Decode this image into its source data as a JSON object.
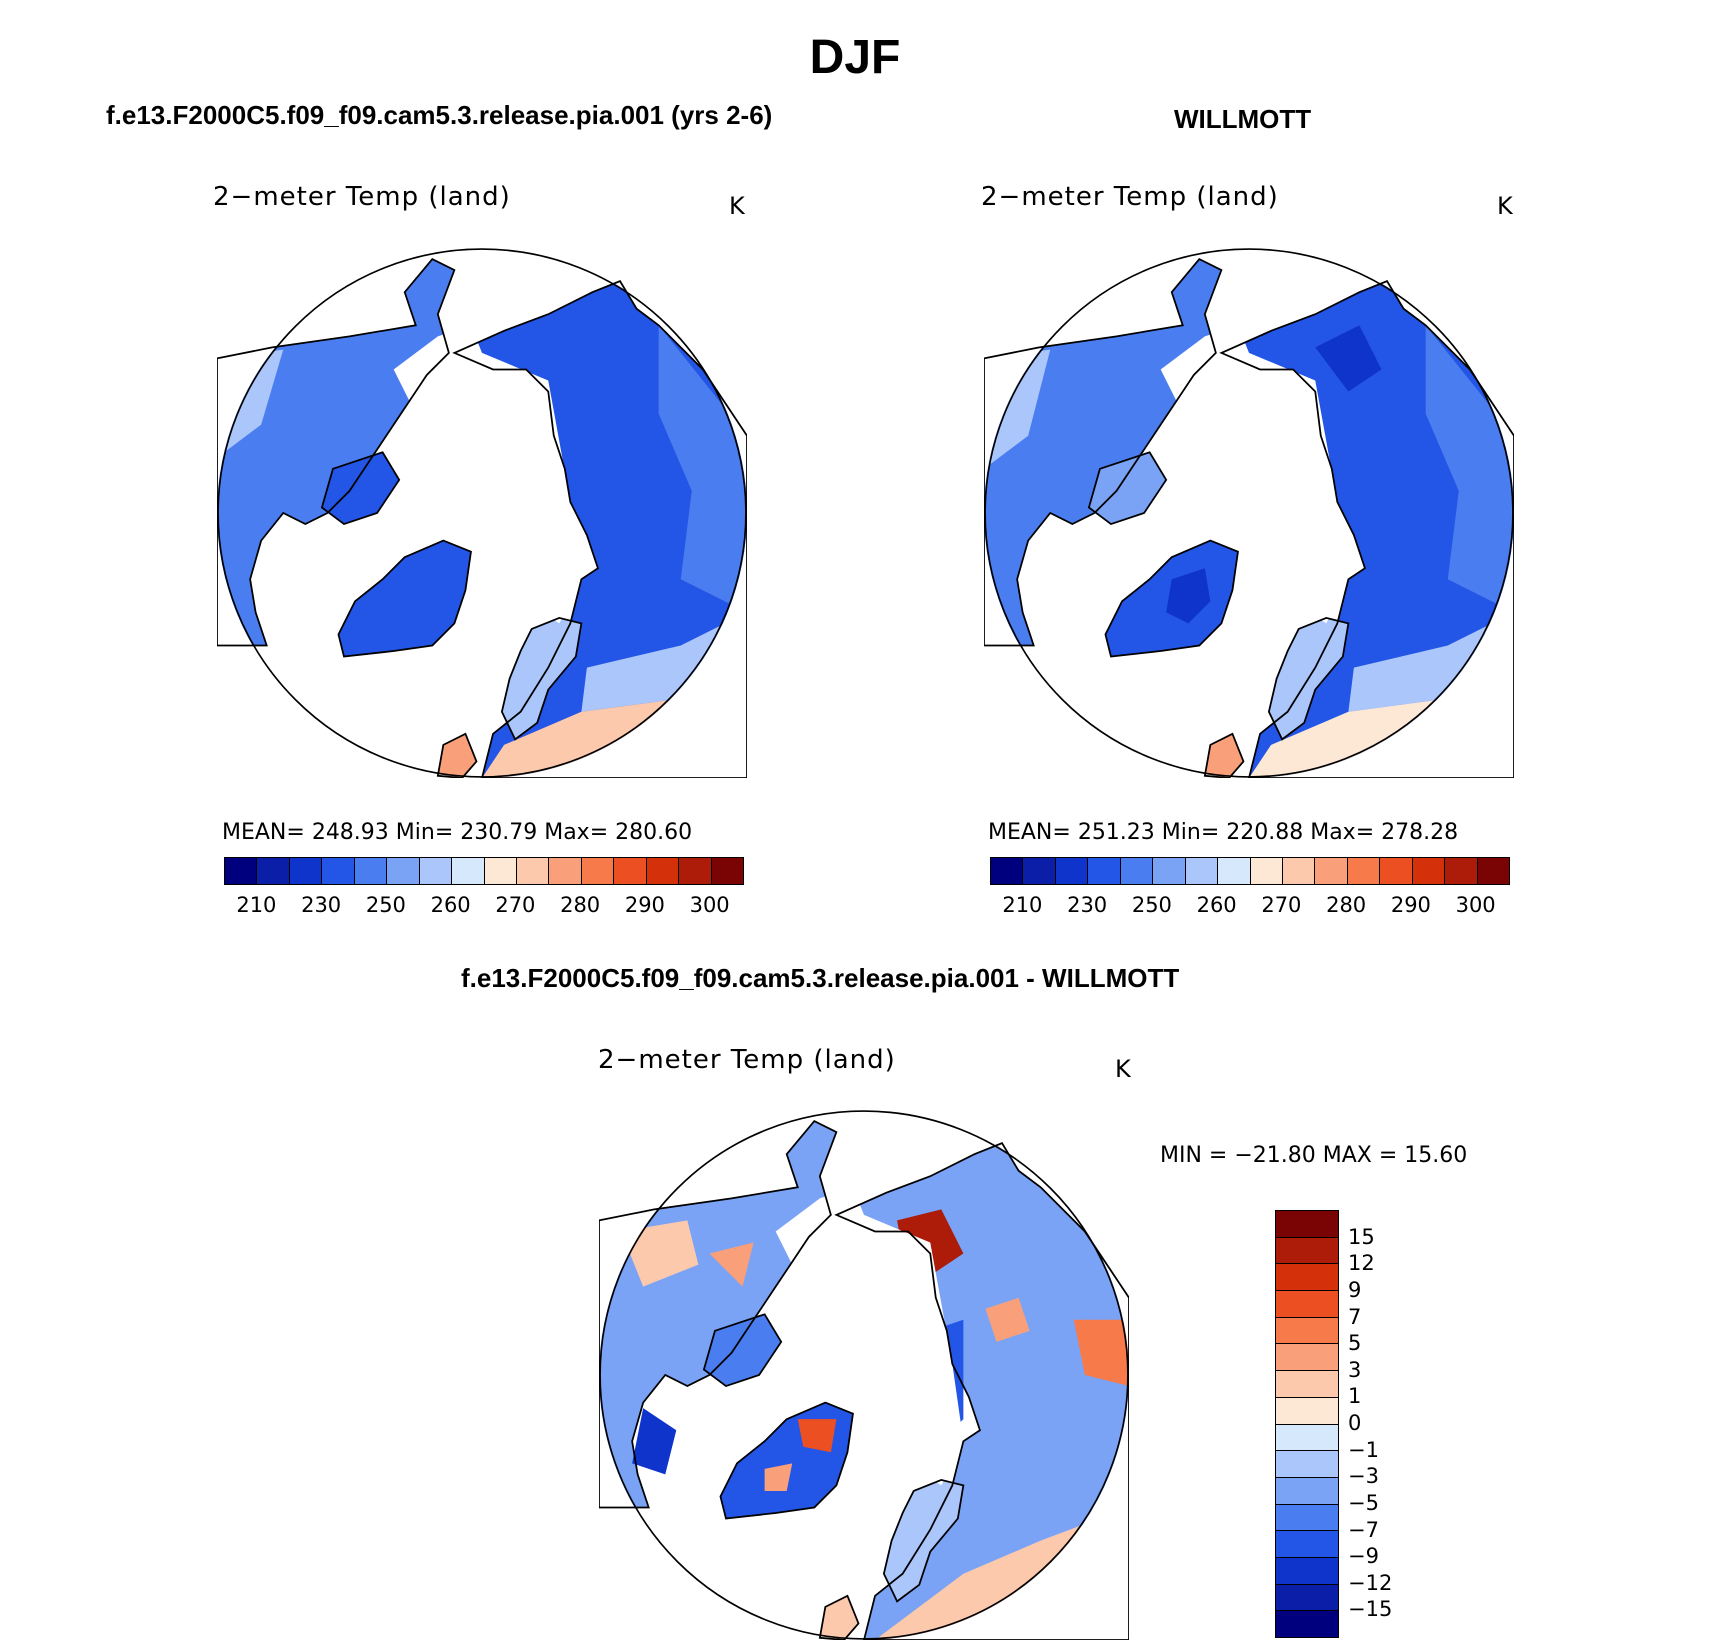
{
  "main_title": "DJF",
  "panels": {
    "model": {
      "case_title": "f.e13.F2000C5.f09_f09.cam5.3.release.pia.001 (yrs 2-6)",
      "plot_title": "2−meter Temp (land)",
      "unit": "K",
      "stats": "MEAN=  248.93    Min=  230.79    Max=  280.60"
    },
    "obs": {
      "case_title": "WILLMOTT",
      "plot_title": "2−meter Temp (land)",
      "unit": "K",
      "stats": "MEAN=  251.23    Min=  220.88    Max=  278.28"
    },
    "diff": {
      "case_title": "f.e13.F2000C5.f09_f09.cam5.3.release.pia.001 - WILLMOTT",
      "plot_title": "2−meter Temp (land)",
      "unit": "K",
      "stats": "MIN  =  −21.80  MAX  =    15.60"
    }
  },
  "colorbar_abs": {
    "tick_labels": [
      "210",
      "230",
      "250",
      "260",
      "270",
      "280",
      "290",
      "300"
    ],
    "colors": [
      "#00007f",
      "#0a1ea8",
      "#0f34cc",
      "#2356e6",
      "#4a7ef0",
      "#7aa3f5",
      "#aac6fb",
      "#d6e8fc",
      "#fde8d6",
      "#fcc9ad",
      "#f9a07a",
      "#f77a4a",
      "#ec4f22",
      "#d4300a",
      "#ac1c08",
      "#7a0303"
    ]
  },
  "colorbar_diff": {
    "tick_labels": [
      "15",
      "12",
      "9",
      "7",
      "5",
      "3",
      "1",
      "0",
      "−1",
      "−3",
      "−5",
      "−7",
      "−9",
      "−12",
      "−15"
    ],
    "colors": [
      "#7a0303",
      "#ac1c08",
      "#d4300a",
      "#ec4f22",
      "#f77a4a",
      "#f9a07a",
      "#fcc9ad",
      "#fde8d6",
      "#d6e8fc",
      "#aac6fb",
      "#7aa3f5",
      "#4a7ef0",
      "#2356e6",
      "#0f34cc",
      "#0a1ea8",
      "#00007f"
    ]
  }
}
